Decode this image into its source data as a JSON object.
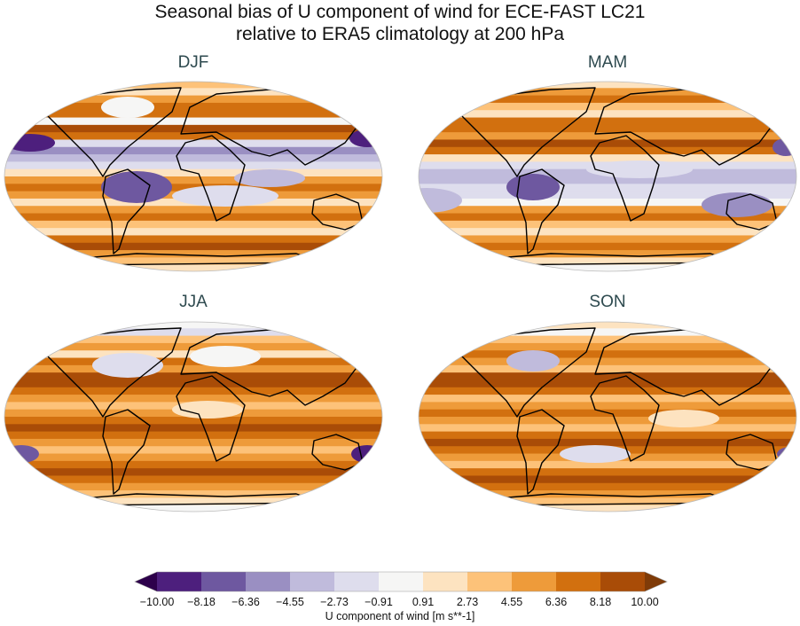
{
  "title_line1": "Seasonal bias of U component of wind for ECE-FAST LC21",
  "title_line2": "relative to ERA5 climatology at 200 hPa",
  "panels": [
    {
      "label": "DJF"
    },
    {
      "label": "MAM"
    },
    {
      "label": "JJA"
    },
    {
      "label": "SON"
    }
  ],
  "colorbar": {
    "label": "U component of wind [m s**-1]",
    "ticks": [
      "−10.00",
      "−8.18",
      "−6.36",
      "−4.55",
      "−2.73",
      "−0.91",
      "0.91",
      "2.73",
      "4.55",
      "6.36",
      "8.18",
      "10.00"
    ],
    "colors": [
      "#4d1f7d",
      "#6e58a0",
      "#9a8fc2",
      "#c0bbdc",
      "#dedded",
      "#f6f6f5",
      "#fde3c0",
      "#fdc279",
      "#ee9b3a",
      "#d2700f",
      "#a94c07"
    ],
    "under_color": "#2d004b",
    "over_color": "#7f3b08",
    "extend": "both"
  }
}
